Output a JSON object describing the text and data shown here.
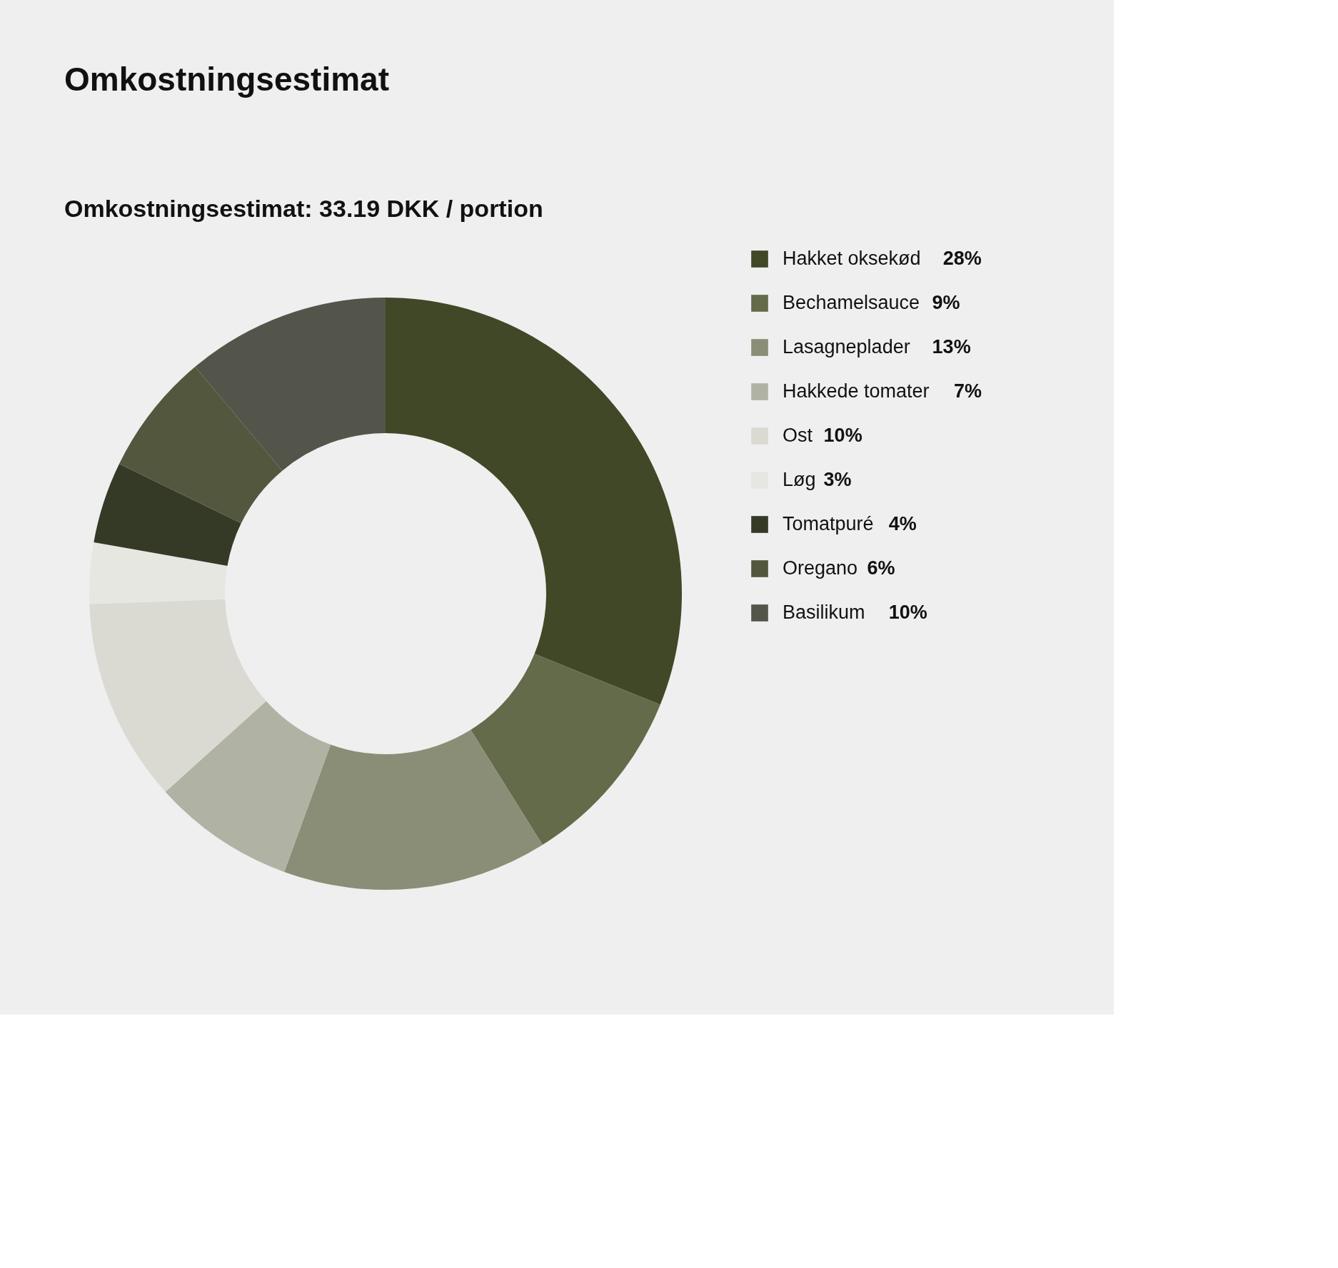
{
  "chart_data": {
    "type": "donut",
    "title": "Omkostningsestimat",
    "subtitle": "Omkostningsestimat: 33.19 DKK / portion",
    "categories": [
      "Hakket oksekød",
      "Bechamelsauce",
      "Lasagneplader",
      "Hakkede tomater",
      "Ost",
      "Løg",
      "Tomatpuré",
      "Oregano",
      "Basilikum"
    ],
    "values": [
      28,
      9,
      13,
      7,
      10,
      3,
      4,
      6,
      10
    ],
    "value_labels": [
      "28%",
      "9%",
      "13%",
      "7%",
      "10%",
      "3%",
      "4%",
      "6%",
      "10%"
    ],
    "colors": [
      "#404827",
      "#636b4a",
      "#8a8e76",
      "#b0b3a4",
      "#dadad2",
      "#e6e7e1",
      "#353a26",
      "#52573d",
      "#53554a"
    ],
    "legend": "right"
  }
}
